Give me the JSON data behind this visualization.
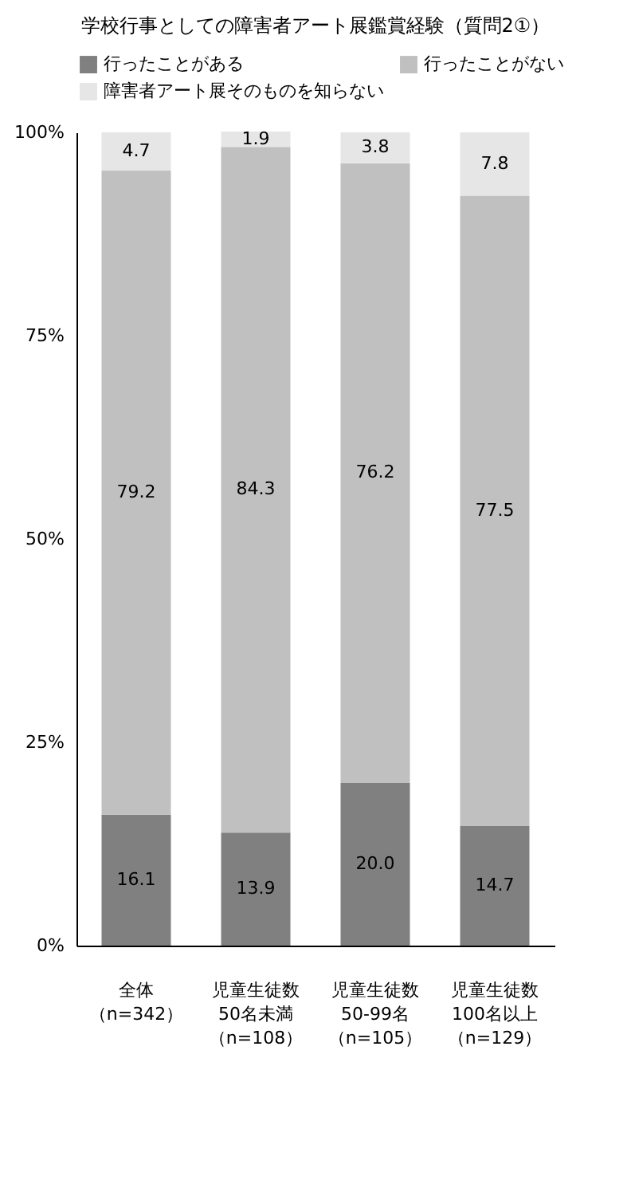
{
  "chart_data": {
    "type": "bar",
    "stacked": true,
    "title": "学校行事としての障害者アート展鑑賞経験（質問2①）",
    "categories": [
      "全体（n=342）",
      "児童生徒数50名未満（n=108）",
      "児童生徒数50-99名（n=105）",
      "児童生徒数100名以上（n=129）"
    ],
    "series": [
      {
        "name": "行ったことがある",
        "color": "#808080",
        "values": [
          16.1,
          13.9,
          20.0,
          14.7
        ],
        "value_labels": [
          "16.1",
          "13.9",
          "20.0",
          "14.7"
        ]
      },
      {
        "name": "行ったことがない",
        "color": "#c0c0c0",
        "values": [
          79.2,
          84.3,
          76.2,
          77.5
        ],
        "value_labels": [
          "79.2",
          "84.3",
          "76.2",
          "77.5"
        ]
      },
      {
        "name": "障害者アート展そのものを知らない",
        "color": "#e6e6e6",
        "values": [
          4.7,
          1.9,
          3.8,
          7.8
        ],
        "value_labels": [
          "4.7",
          "1.9",
          "3.8",
          "7.8"
        ]
      }
    ],
    "ylim": [
      0,
      100
    ],
    "yticks": [
      {
        "value": 0,
        "label": "0%"
      },
      {
        "value": 25,
        "label": "25%"
      },
      {
        "value": 50,
        "label": "50%"
      },
      {
        "value": 75,
        "label": "75%"
      },
      {
        "value": 100,
        "label": "100%"
      }
    ],
    "grid": false,
    "legend": "top"
  }
}
